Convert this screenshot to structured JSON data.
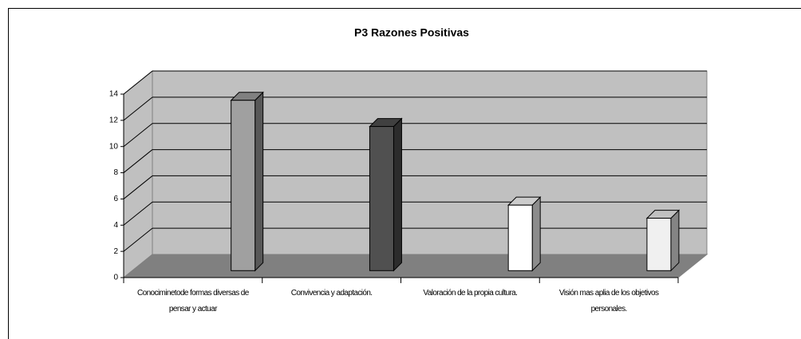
{
  "chart_data": {
    "type": "bar3d",
    "title": "P3 Razones Positivas",
    "categories": [
      "Conociminetode formas diversas de pensar y actuar",
      "Convivencia y adaptación.",
      "Valoración de la propia cultura.",
      "Visión mas aplia de los objetivos personales."
    ],
    "values": [
      13,
      11,
      5,
      4
    ],
    "colors": [
      "#a0a0a0",
      "#505050",
      "#ffffff",
      "#f0f0f0"
    ],
    "ylim": [
      0,
      14
    ],
    "yticks": [
      0,
      2,
      4,
      6,
      8,
      10,
      12,
      14
    ],
    "grid": true
  }
}
